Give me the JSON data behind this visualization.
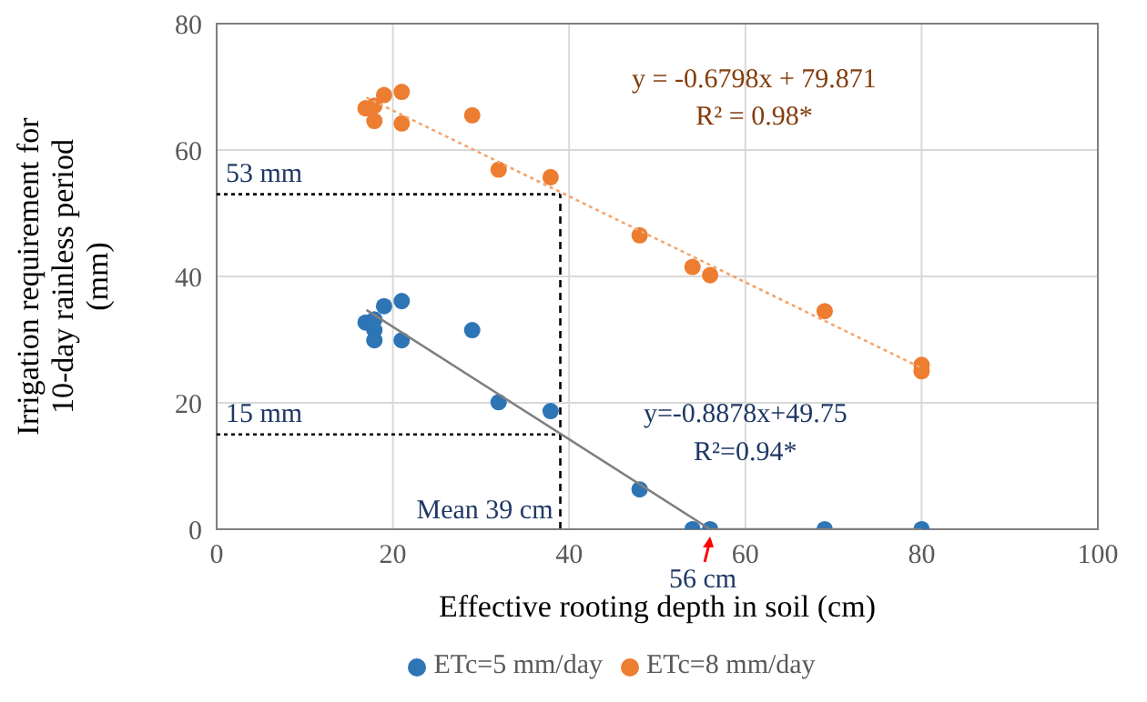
{
  "chart_data": {
    "type": "scatter",
    "xlabel": "Effective rooting depth in soil (cm)",
    "ylabel": "Irrigation requirement for 10-day rainless period (mm)",
    "xlim": [
      0,
      100
    ],
    "xticks": [
      0,
      20,
      40,
      60,
      80,
      100
    ],
    "ylim": [
      0,
      80
    ],
    "yticks": [
      0,
      20,
      40,
      60,
      80
    ],
    "grid": true,
    "legend": "bottom",
    "marker": "circle",
    "series": [
      {
        "name": "ETc=5 mm/day",
        "color": "#2e75b6",
        "x": [
          16.9,
          17.9,
          17.9,
          17.9,
          19,
          21,
          21,
          29,
          32,
          37.9,
          48,
          54,
          56,
          69,
          80
        ],
        "values": [
          32.7,
          33.2,
          31.5,
          29.9,
          35.3,
          36.1,
          29.9,
          31.5,
          20.1,
          18.7,
          6.3,
          0,
          0,
          0,
          0
        ]
      },
      {
        "name": "ETc=8 mm/day",
        "color": "#ed7d31",
        "x": [
          16.9,
          17.9,
          17.9,
          19,
          21,
          21,
          29,
          32,
          37.9,
          48,
          54,
          56,
          69,
          80,
          80
        ],
        "values": [
          66.6,
          67,
          64.6,
          68.7,
          69.2,
          64.2,
          65.5,
          56.9,
          55.7,
          46.5,
          41.5,
          40.2,
          34.5,
          26,
          25
        ]
      },
      {
        "type": "line",
        "color": "#808080",
        "line_style": "solid",
        "marker": "none",
        "x": [
          17,
          56,
          80
        ],
        "values": [
          34.7,
          0,
          0
        ]
      },
      {
        "type": "line",
        "color": "#f4a46c",
        "line_style": "dotted",
        "marker": "none",
        "x": [
          17,
          80
        ],
        "values": [
          68.3,
          25.5
        ]
      }
    ],
    "ref_lines": [
      {
        "axis": "x",
        "value": 39,
        "label": "Mean 39 cm",
        "color": "#000000",
        "line_style": "dashed"
      },
      {
        "axis": "y",
        "value": 53,
        "label": "53 mm",
        "color": "#000000",
        "line_style": "dotted"
      },
      {
        "axis": "y",
        "value": 15,
        "label": "15 mm",
        "color": "#000000",
        "line_style": "dotted"
      }
    ],
    "annotations": [
      "y = -0.6798x + 79.871",
      "R² = 0.98*",
      "y=-0.8878x+49.75",
      "R²=0.94*",
      {
        "text": "56 cm",
        "x": 56,
        "y": 0
      }
    ]
  }
}
